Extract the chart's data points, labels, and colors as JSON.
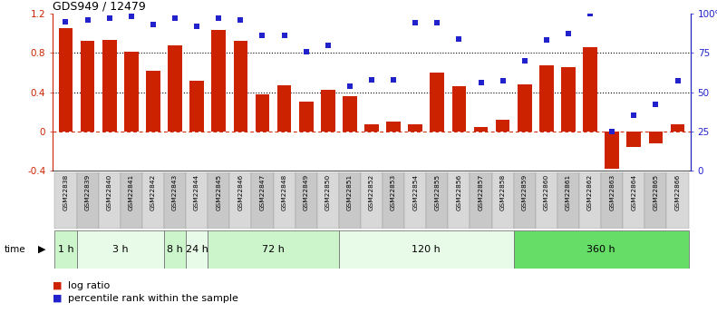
{
  "title": "GDS949 / 12479",
  "samples": [
    "GSM22838",
    "GSM22839",
    "GSM22840",
    "GSM22841",
    "GSM22842",
    "GSM22843",
    "GSM22844",
    "GSM22845",
    "GSM22846",
    "GSM22847",
    "GSM22848",
    "GSM22849",
    "GSM22850",
    "GSM22851",
    "GSM22852",
    "GSM22853",
    "GSM22854",
    "GSM22855",
    "GSM22856",
    "GSM22857",
    "GSM22858",
    "GSM22859",
    "GSM22860",
    "GSM22861",
    "GSM22862",
    "GSM22863",
    "GSM22864",
    "GSM22865",
    "GSM22866"
  ],
  "log_ratio": [
    1.05,
    0.92,
    0.93,
    0.81,
    0.62,
    0.88,
    0.52,
    1.03,
    0.92,
    0.38,
    0.47,
    0.3,
    0.42,
    0.36,
    0.07,
    0.1,
    0.07,
    0.6,
    0.46,
    0.04,
    0.12,
    0.48,
    0.67,
    0.65,
    0.86,
    -0.38,
    -0.16,
    -0.12,
    0.07
  ],
  "percentile_rank": [
    0.95,
    0.96,
    0.97,
    0.98,
    0.93,
    0.97,
    0.92,
    0.97,
    0.96,
    0.86,
    0.86,
    0.76,
    0.8,
    0.54,
    0.58,
    0.58,
    0.94,
    0.94,
    0.84,
    0.56,
    0.57,
    0.7,
    0.83,
    0.87,
    1.0,
    0.25,
    0.35,
    0.42,
    0.57
  ],
  "time_groups": [
    {
      "label": "1 h",
      "start": 0,
      "end": 1,
      "color": "#ccf5cc"
    },
    {
      "label": "3 h",
      "start": 1,
      "end": 5,
      "color": "#e8fae8"
    },
    {
      "label": "8 h",
      "start": 5,
      "end": 6,
      "color": "#ccf5cc"
    },
    {
      "label": "24 h",
      "start": 6,
      "end": 7,
      "color": "#e8fae8"
    },
    {
      "label": "72 h",
      "start": 7,
      "end": 13,
      "color": "#ccf5cc"
    },
    {
      "label": "120 h",
      "start": 13,
      "end": 21,
      "color": "#e8fae8"
    },
    {
      "label": "360 h",
      "start": 21,
      "end": 29,
      "color": "#66dd66"
    }
  ],
  "bar_color": "#cc2200",
  "dot_color": "#2222cc",
  "ylim_left": [
    -0.4,
    1.2
  ],
  "ylim_right": [
    0.0,
    1.0
  ],
  "yticks_left": [
    -0.4,
    0.0,
    0.4,
    0.8,
    1.2
  ],
  "yticks_left_labels": [
    "-0.4",
    "0",
    "0.4",
    "0.8",
    "1.2"
  ],
  "yticks_right": [
    0.0,
    0.25,
    0.5,
    0.75,
    1.0
  ],
  "yticks_right_labels": [
    "0",
    "25",
    "50",
    "75",
    "100%"
  ],
  "hlines": [
    0.4,
    0.8
  ],
  "zero_line_color": "#cc2200",
  "bg_color": "#ffffff",
  "legend_log_ratio": "log ratio",
  "legend_percentile": "percentile rank within the sample",
  "sample_box_colors": [
    "#d8d8d8",
    "#c8c8c8"
  ]
}
